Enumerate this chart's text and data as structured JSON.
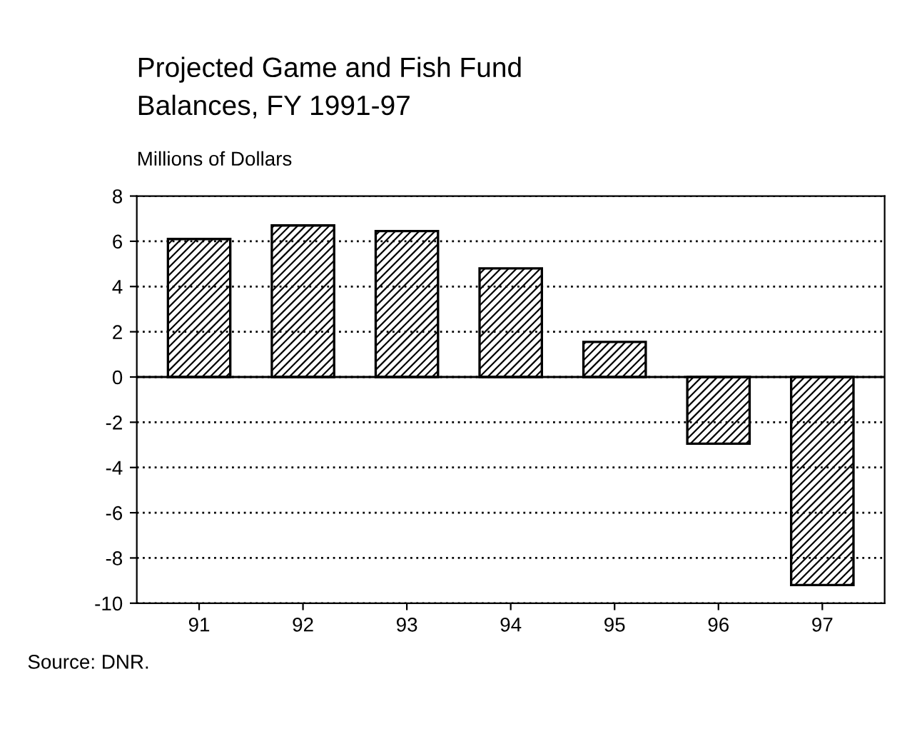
{
  "chart_data": {
    "type": "bar",
    "title": "Projected Game and Fish Fund\nBalances, FY 1991-97",
    "ylabel": "Millions of Dollars",
    "categories": [
      "91",
      "92",
      "93",
      "94",
      "95",
      "96",
      "97"
    ],
    "values": [
      6.1,
      6.7,
      6.45,
      4.8,
      1.55,
      -2.95,
      -9.2
    ],
    "color": "#000000",
    "ylim": [
      -10,
      8
    ],
    "yticks": [
      -10,
      -8,
      -6,
      -4,
      -2,
      0,
      2,
      4,
      6,
      8
    ],
    "grid": "y",
    "annotations": [
      "Source: DNR."
    ]
  }
}
